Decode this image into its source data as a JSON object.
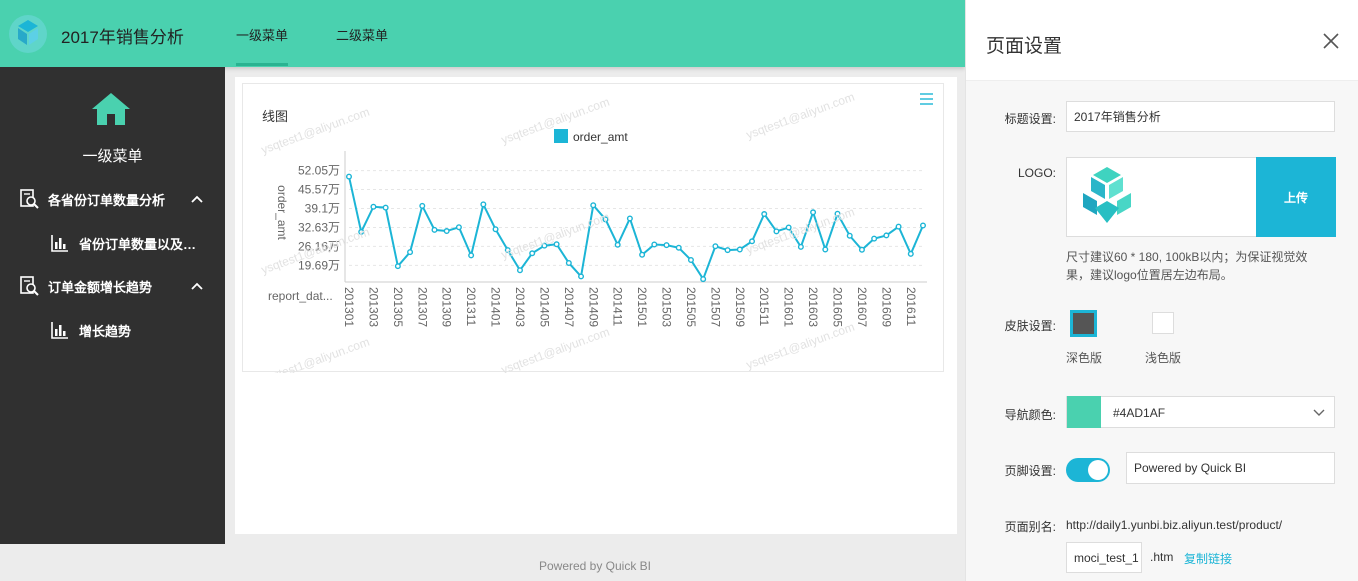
{
  "header": {
    "title": "2017年销售分析",
    "nav": [
      {
        "label": "一级菜单",
        "active": true
      },
      {
        "label": "二级菜单",
        "active": false
      }
    ],
    "bg_color": "#4AD1AF"
  },
  "sidebar": {
    "home_label": "一级菜单",
    "groups": [
      {
        "label": "各省份订单数量分析",
        "icon": "report-search-icon",
        "expanded": true,
        "children": [
          {
            "label": "省份订单数量以及…",
            "icon": "bar-chart-icon"
          }
        ]
      },
      {
        "label": "订单金额增长趋势",
        "icon": "report-search-icon",
        "expanded": true,
        "children": [
          {
            "label": "增长趋势",
            "icon": "bar-chart-icon"
          }
        ]
      }
    ]
  },
  "chart_card": {
    "title": "线图",
    "menu_icon": "hamburger-menu-icon"
  },
  "chart_data": {
    "type": "line",
    "legend": [
      "order_amt"
    ],
    "legend_position": "top-center",
    "ylabel": "order_amt",
    "xlabel": "report_dat...",
    "y_ticks": [
      "19.69万",
      "26.16万",
      "32.63万",
      "39.1万",
      "45.57万",
      "52.05万"
    ],
    "y_tick_values": [
      196900,
      261600,
      326300,
      391000,
      455700,
      520500
    ],
    "ylim": [
      140000,
      560000
    ],
    "x_tick_labels": [
      "201301",
      "201303",
      "201305",
      "201307",
      "201309",
      "201311",
      "201401",
      "201403",
      "201405",
      "201407",
      "201409",
      "201411",
      "201501",
      "201503",
      "201505",
      "201507",
      "201509",
      "201511",
      "201601",
      "201603",
      "201605",
      "201607",
      "201609",
      "201611"
    ],
    "color": "#1CB5D6",
    "grid": true,
    "series": [
      {
        "name": "order_amt",
        "values": [
          500000,
          311000,
          397000,
          394000,
          194000,
          242000,
          400000,
          318000,
          314000,
          327000,
          231000,
          405000,
          320000,
          249000,
          180000,
          238000,
          264000,
          269000,
          205000,
          159000,
          402000,
          354000,
          267000,
          357000,
          233000,
          268000,
          266000,
          257000,
          215000,
          150000,
          262000,
          249000,
          251000,
          279000,
          372000,
          313000,
          326000,
          260000,
          378000,
          251000,
          373000,
          298000,
          250000,
          288000,
          299000,
          329000,
          236000,
          333000
        ]
      }
    ]
  },
  "footer": {
    "text": "Powered by Quick BI"
  },
  "settings": {
    "title": "页面设置",
    "close_icon": "close-icon",
    "title_label": "标题设置:",
    "title_value": "2017年销售分析",
    "logo_label": "LOGO:",
    "upload_label": "上传",
    "logo_hint": "尺寸建议60 * 180, 100kB以内；为保证视觉效果，建议logo位置居左边布局。",
    "skin_label": "皮肤设置:",
    "skin_dark_label": "深色版",
    "skin_light_label": "浅色版",
    "skin_selected": "dark",
    "nav_color_label": "导航颜色:",
    "nav_color_value": "#4AD1AF",
    "footer_label": "页脚设置:",
    "footer_enabled": true,
    "footer_value": "Powered by Quick BI",
    "alias_label": "页面别名:",
    "alias_url": "http://daily1.yunbi.biz.aliyun.test/product/",
    "alias_value": "moci_test_1",
    "alias_ext": ".htm",
    "copy_label": "复制链接"
  },
  "watermark": "ysqtest1@aliyun.com"
}
